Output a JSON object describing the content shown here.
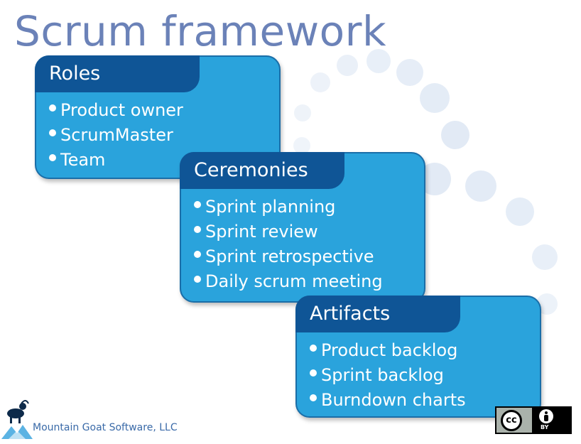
{
  "title": "Scrum framework",
  "cards": {
    "roles": {
      "heading": "Roles",
      "items": [
        "Product owner",
        "ScrumMaster",
        "Team"
      ]
    },
    "ceremonies": {
      "heading": "Ceremonies",
      "items": [
        "Sprint planning",
        "Sprint review",
        "Sprint retrospective",
        "Daily scrum meeting"
      ]
    },
    "artifacts": {
      "heading": "Artifacts",
      "items": [
        "Product backlog",
        "Sprint backlog",
        "Burndown charts"
      ]
    }
  },
  "footer": {
    "company": "Mountain Goat Software, LLC",
    "license_badge": {
      "left": "cc",
      "right": "BY"
    }
  },
  "colors": {
    "title": "#6b82b8",
    "card_body": "#2aa3dc",
    "card_header": "#0f5596",
    "dot": "#e3ecf6"
  }
}
